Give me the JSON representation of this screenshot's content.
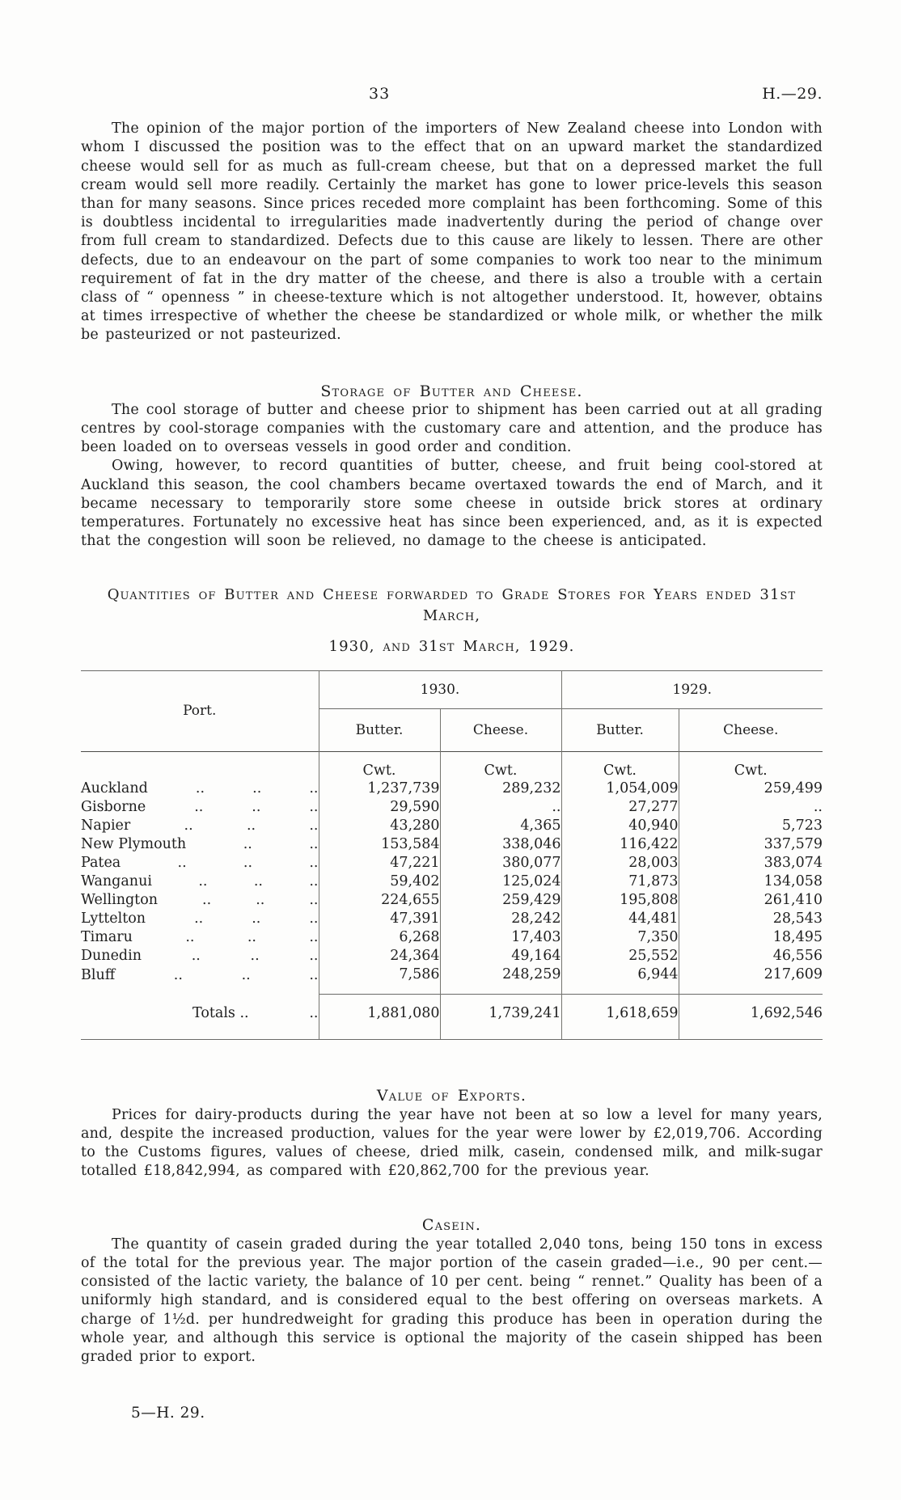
{
  "header": {
    "page_number": "33",
    "doc_ref": "H.—29."
  },
  "intro_paragraph": "The opinion of the major portion of the importers of New Zealand cheese into London with whom I discussed the position was to the effect that on an upward market the standardized cheese would sell for as much as full-cream cheese, but that on a depressed market the full cream would sell more readily.  Certainly the market has gone to lower price-levels this season than for many seasons.  Since prices receded more complaint has been forthcoming.  Some of this is doubtless incidental to irregularities made inadvertently during the period of change over from full cream to standardized.  Defects due to this cause are likely to lessen.  There are other defects, due to an endeavour on the part of some companies to work too near to the minimum requirement of fat in the dry matter of the cheese, and there is also a trouble with a certain class of “ openness ” in cheese-texture which is not altogether understood.  It, however, obtains at times irrespective of whether the cheese be standardized or whole milk, or whether the milk be pasteurized or not pasteurized.",
  "storage": {
    "heading": "Storage of Butter and Cheese.",
    "para1": "The cool storage of butter and cheese prior to shipment has been carried out at all grading centres by cool-storage companies with the customary care and attention, and the produce has been loaded on to overseas vessels in good order and condition.",
    "para2": "Owing, however, to record quantities of butter, cheese, and fruit being cool-stored at Auckland this season, the cool chambers became overtaxed towards the end of March, and it became necessary to temporarily store some cheese in outside brick stores at ordinary temperatures.  Fortunately no excessive heat has since been experienced, and, as it is expected that the congestion will soon be relieved, no damage to the cheese is anticipated."
  },
  "table": {
    "title_line1": "Quantities of Butter and Cheese forwarded to Grade Stores for Years ended 31st March,",
    "title_line2": "1930, and 31st March, 1929.",
    "col_port": "Port.",
    "year1": "1930.",
    "year2": "1929.",
    "col_butter": "Butter.",
    "col_cheese": "Cheese.",
    "unit": "Cwt.",
    "leader": "..",
    "rows": [
      {
        "port": "Auckland",
        "b1930": "1,237,739",
        "c1930": "289,232",
        "b1929": "1,054,009",
        "c1929": "259,499"
      },
      {
        "port": "Gisborne",
        "b1930": "29,590",
        "c1930": "..",
        "b1929": "27,277",
        "c1929": ".."
      },
      {
        "port": "Napier",
        "b1930": "43,280",
        "c1930": "4,365",
        "b1929": "40,940",
        "c1929": "5,723"
      },
      {
        "port": "New Plymouth",
        "b1930": "153,584",
        "c1930": "338,046",
        "b1929": "116,422",
        "c1929": "337,579"
      },
      {
        "port": "Patea",
        "b1930": "47,221",
        "c1930": "380,077",
        "b1929": "28,003",
        "c1929": "383,074"
      },
      {
        "port": "Wanganui",
        "b1930": "59,402",
        "c1930": "125,024",
        "b1929": "71,873",
        "c1929": "134,058"
      },
      {
        "port": "Wellington",
        "b1930": "224,655",
        "c1930": "259,429",
        "b1929": "195,808",
        "c1929": "261,410"
      },
      {
        "port": "Lyttelton",
        "b1930": "47,391",
        "c1930": "28,242",
        "b1929": "44,481",
        "c1929": "28,543"
      },
      {
        "port": "Timaru",
        "b1930": "6,268",
        "c1930": "17,403",
        "b1929": "7,350",
        "c1929": "18,495"
      },
      {
        "port": "Dunedin",
        "b1930": "24,364",
        "c1930": "49,164",
        "b1929": "25,552",
        "c1929": "46,556"
      },
      {
        "port": "Bluff",
        "b1930": "7,586",
        "c1930": "248,259",
        "b1929": "6,944",
        "c1929": "217,609"
      }
    ],
    "totals": {
      "label": "Totals ..",
      "b1930": "1,881,080",
      "c1930": "1,739,241",
      "b1929": "1,618,659",
      "c1929": "1,692,546"
    }
  },
  "exports": {
    "heading": "Value of Exports.",
    "para": "Prices for dairy-products during the year have not been at so low a level for many years, and, despite the increased production, values for the year were lower by £2,019,706.  According to the Customs figures, values of cheese, dried milk, casein, condensed milk, and milk-sugar totalled £18,842,994, as compared with £20,862,700 for the previous year."
  },
  "casein": {
    "heading": "Casein.",
    "para": "The quantity of casein graded during the year totalled 2,040 tons, being 150 tons in excess of the total for the previous year.  The major portion of the casein graded—i.e., 90 per cent.—consisted of the lactic variety, the balance of 10 per cent. being “ rennet.”  Quality has been of a uniformly high standard, and is considered equal to the best offering on overseas markets.  A charge of 1½d. per hundredweight for grading this produce has been in operation during the whole year, and although this service is optional the majority of the casein shipped has been graded prior to export."
  },
  "footer": "5—H. 29."
}
